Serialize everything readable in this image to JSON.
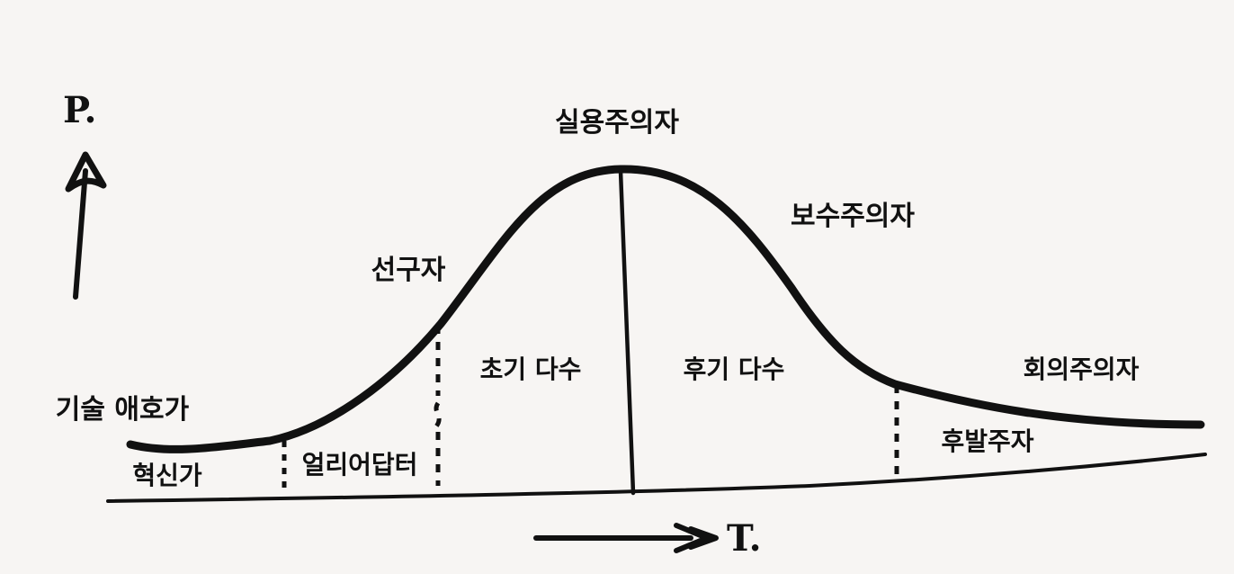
{
  "axes": {
    "y_label": "P.",
    "x_label": "T."
  },
  "labels": {
    "pragmatists": "실용주의자",
    "conservatives": "보수주의자",
    "visionaries": "선구자",
    "early_majority": "초기 다수",
    "late_majority": "후기 다수",
    "skeptics": "회의주의자",
    "tech_enthusiasts": "기술 애호가",
    "innovators": "혁신가",
    "early_adopters": "얼리어답터",
    "laggards": "후발주자"
  },
  "colors": {
    "ink": "#111111",
    "paper": "#f7f5f3"
  }
}
